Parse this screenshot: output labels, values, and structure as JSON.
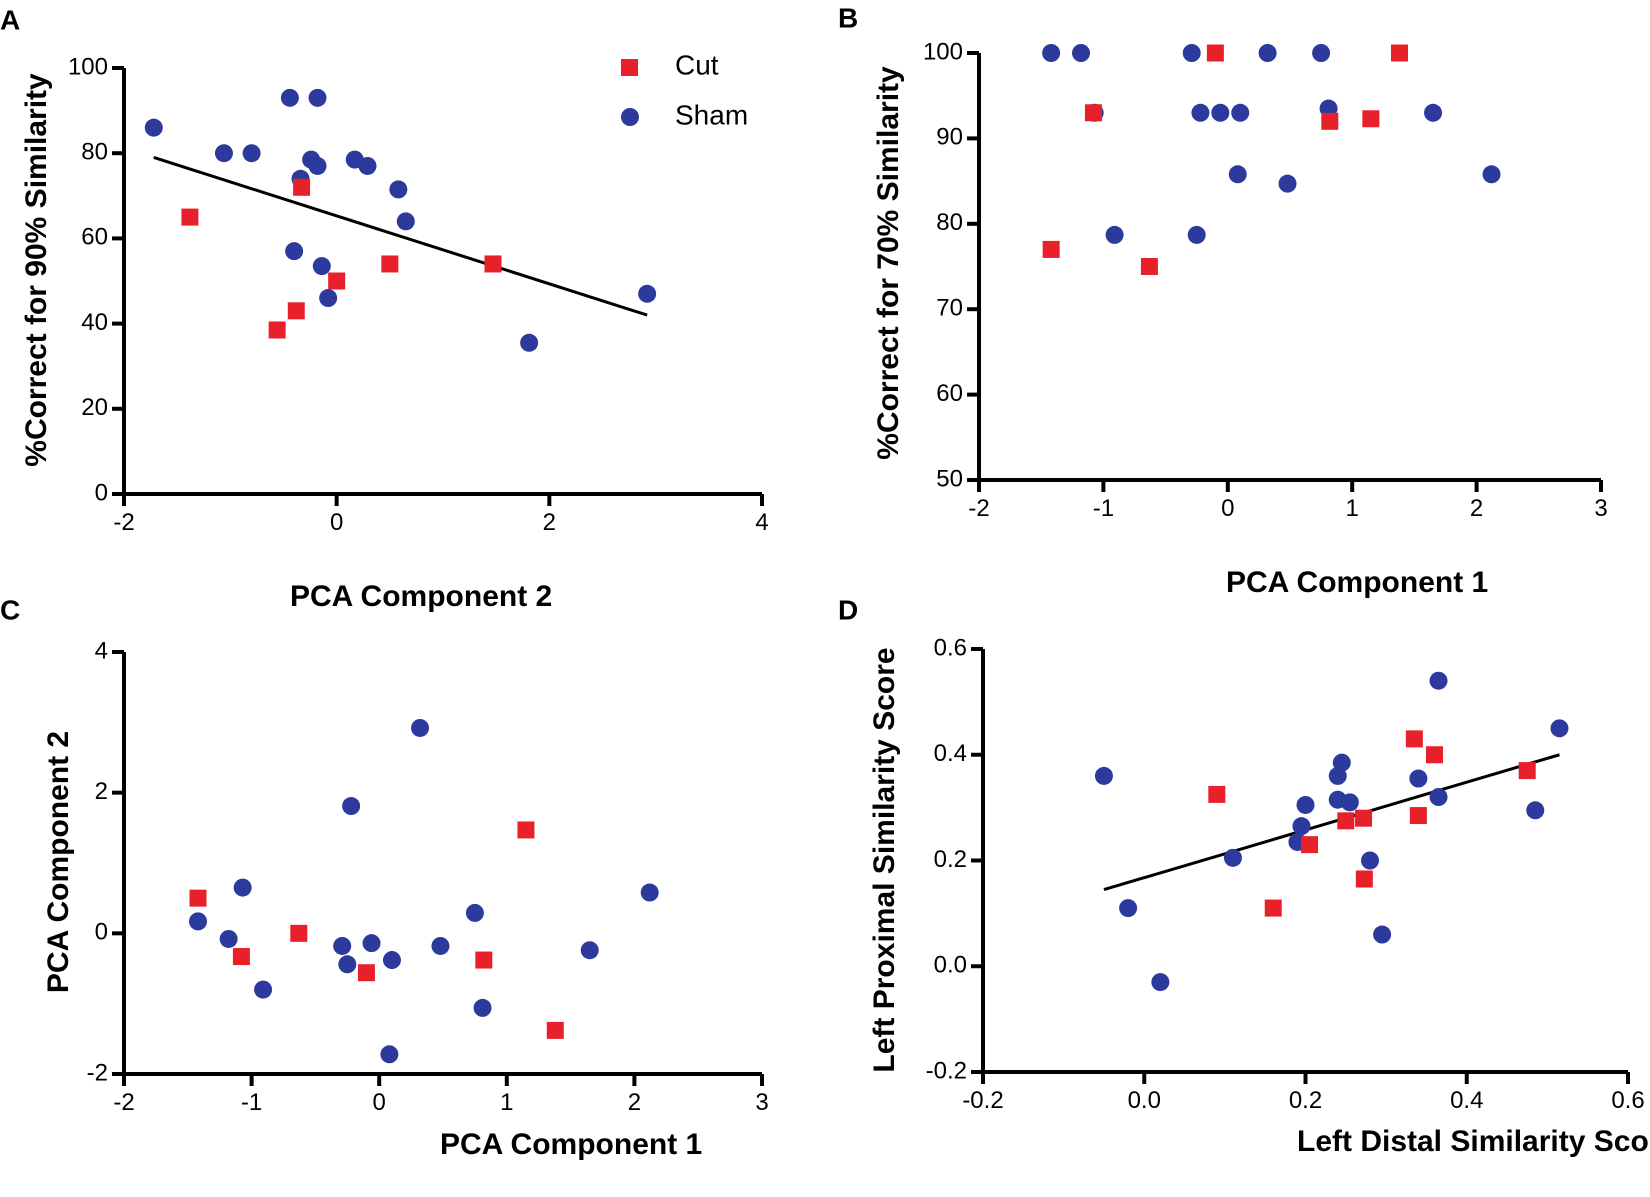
{
  "colors": {
    "cut": "#e8202a",
    "sham": "#2b3a9c",
    "axis": "#000000"
  },
  "legend": {
    "cut_label": "Cut",
    "sham_label": "Sham",
    "cut_icon": "square-marker-icon",
    "sham_icon": "circle-marker-icon"
  },
  "chart_data": [
    {
      "letter": "A",
      "type": "scatter",
      "title": "",
      "xlabel": "PCA Component 2",
      "ylabel": "%Correct for 90% Similarity",
      "xlim": [
        -2,
        4
      ],
      "ylim": [
        0,
        100
      ],
      "xticks": [
        -2,
        0,
        2,
        4
      ],
      "yticks": [
        0,
        20,
        40,
        60,
        80,
        100
      ],
      "xtick_labels": [
        "-2",
        "0",
        "2",
        "4"
      ],
      "ytick_labels": [
        "0",
        "20",
        "40",
        "60",
        "80",
        "100"
      ],
      "series": [
        {
          "name": "Sham",
          "marker": "circle",
          "x": [
            -1.72,
            -1.06,
            -0.8,
            -0.44,
            -0.18,
            -0.34,
            -0.24,
            -0.18,
            0.17,
            0.29,
            0.58,
            0.65,
            -0.4,
            -0.14,
            -0.08,
            1.81,
            2.92
          ],
          "y": [
            86,
            80,
            80,
            93,
            93,
            74,
            78.5,
            77,
            78.5,
            77,
            71.5,
            64,
            57,
            53.5,
            46,
            35.5,
            47
          ]
        },
        {
          "name": "Cut",
          "marker": "square",
          "x": [
            -1.38,
            -0.33,
            0.0,
            0.5,
            1.47,
            -0.38,
            -0.56
          ],
          "y": [
            65,
            72,
            50,
            54,
            54,
            43,
            38.5
          ]
        }
      ],
      "fit_line": {
        "x": [
          -1.72,
          2.92
        ],
        "y": [
          79,
          42
        ]
      }
    },
    {
      "letter": "B",
      "type": "scatter",
      "title": "",
      "xlabel": "PCA  Component 1",
      "ylabel": "%Correct for 70% Similarity",
      "xlim": [
        -2,
        3
      ],
      "ylim": [
        50,
        100
      ],
      "xticks": [
        -2,
        -1,
        0,
        1,
        2,
        3
      ],
      "yticks": [
        50,
        60,
        70,
        80,
        90,
        100
      ],
      "xtick_labels": [
        "-2",
        "-1",
        "0",
        "1",
        "2",
        "3"
      ],
      "ytick_labels": [
        "50",
        "60",
        "70",
        "80",
        "90",
        "100"
      ],
      "series": [
        {
          "name": "Sham",
          "marker": "circle",
          "x": [
            -1.42,
            -1.18,
            -0.29,
            0.32,
            0.75,
            -1.07,
            -0.22,
            -0.06,
            0.1,
            0.81,
            1.65,
            0.08,
            -0.91,
            -0.25,
            0.48,
            2.12
          ],
          "y": [
            100,
            100,
            100,
            100,
            100,
            93,
            93,
            93,
            93,
            93.5,
            93,
            85.8,
            78.7,
            78.7,
            84.7,
            85.8
          ]
        },
        {
          "name": "Cut",
          "marker": "square",
          "x": [
            -0.1,
            1.38,
            -1.08,
            0.82,
            1.15,
            -1.42,
            -0.63
          ],
          "y": [
            100,
            100,
            93,
            92,
            92.3,
            77,
            75
          ]
        }
      ]
    },
    {
      "letter": "C",
      "type": "scatter",
      "title": "",
      "xlabel": "PCA  Component 1",
      "ylabel": "PCA Component 2",
      "xlim": [
        -2,
        3
      ],
      "ylim": [
        -2,
        4
      ],
      "xticks": [
        -2,
        -1,
        0,
        1,
        2,
        3
      ],
      "yticks": [
        -2,
        0,
        2,
        4
      ],
      "xtick_labels": [
        "-2",
        "-1",
        "0",
        "1",
        "2",
        "3"
      ],
      "ytick_labels": [
        "-2",
        "0",
        "2",
        "4"
      ],
      "series": [
        {
          "name": "Sham",
          "marker": "circle",
          "x": [
            0.32,
            -0.22,
            -1.07,
            -1.42,
            -1.18,
            -0.91,
            -0.29,
            -0.25,
            -0.06,
            0.1,
            0.48,
            0.75,
            0.81,
            1.65,
            2.12,
            0.08
          ],
          "y": [
            2.92,
            1.81,
            0.65,
            0.17,
            -0.08,
            -0.8,
            -0.18,
            -0.44,
            -0.14,
            -0.38,
            -0.18,
            0.29,
            -1.06,
            -0.24,
            0.58,
            -1.72
          ]
        },
        {
          "name": "Cut",
          "marker": "square",
          "x": [
            -1.42,
            -1.08,
            -0.63,
            -0.1,
            0.82,
            1.15,
            1.38
          ],
          "y": [
            0.5,
            -0.33,
            0.0,
            -0.56,
            -0.38,
            1.47,
            -1.38
          ]
        }
      ]
    },
    {
      "letter": "D",
      "type": "scatter",
      "title": "",
      "xlabel": "Left Distal Similarity Score",
      "ylabel": "Left Proximal Similarity Score",
      "xlim": [
        -0.2,
        0.6
      ],
      "ylim": [
        -0.2,
        0.6
      ],
      "xticks": [
        -0.2,
        0.0,
        0.2,
        0.4,
        0.6
      ],
      "yticks": [
        -0.2,
        0.0,
        0.2,
        0.4,
        0.6
      ],
      "xtick_labels": [
        "-0.2",
        "0.0",
        "0.2",
        "0.4",
        "0.6"
      ],
      "ytick_labels": [
        "-0.2",
        "0.0",
        "0.2",
        "0.4",
        "0.6"
      ],
      "series": [
        {
          "name": "Sham",
          "marker": "circle",
          "x": [
            -0.05,
            -0.02,
            0.02,
            0.11,
            0.19,
            0.195,
            0.2,
            0.24,
            0.245,
            0.24,
            0.255,
            0.28,
            0.295,
            0.34,
            0.365,
            0.365,
            0.485,
            0.515
          ],
          "y": [
            0.36,
            0.11,
            -0.03,
            0.205,
            0.235,
            0.265,
            0.305,
            0.36,
            0.385,
            0.315,
            0.31,
            0.2,
            0.06,
            0.355,
            0.32,
            0.54,
            0.295,
            0.45
          ]
        },
        {
          "name": "Cut",
          "marker": "square",
          "x": [
            0.09,
            0.16,
            0.205,
            0.25,
            0.272,
            0.273,
            0.335,
            0.34,
            0.36,
            0.475
          ],
          "y": [
            0.325,
            0.11,
            0.23,
            0.275,
            0.28,
            0.165,
            0.43,
            0.285,
            0.4,
            0.37
          ]
        }
      ],
      "fit_line": {
        "x": [
          -0.05,
          0.515
        ],
        "y": [
          0.145,
          0.4
        ]
      }
    }
  ]
}
